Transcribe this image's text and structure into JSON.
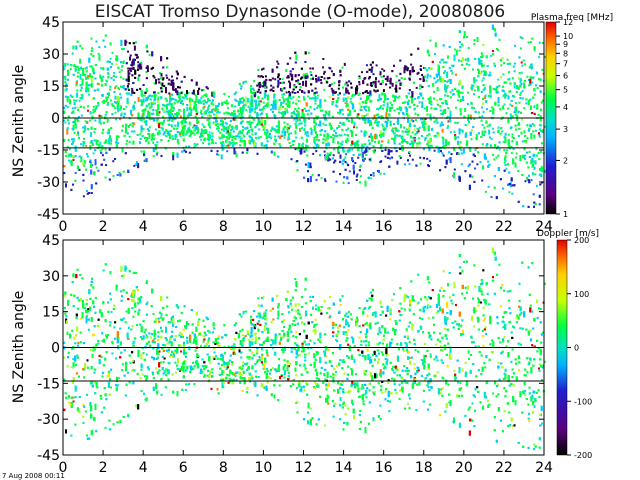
{
  "title": "EISCAT Tromso Dynasonde (O-mode),  20080806",
  "footer": "7 Aug 2008 00:11",
  "chart_data": [
    {
      "type": "scatter",
      "name_note": "top panel",
      "ylabel": "NS Zenith angle",
      "xlim": [
        0,
        24
      ],
      "ylim": [
        -45,
        45
      ],
      "xticks": [
        "0",
        "2",
        "4",
        "6",
        "8",
        "10",
        "12",
        "14",
        "16",
        "18",
        "20",
        "22",
        "24"
      ],
      "yticks": [
        "45",
        "30",
        "15",
        "0",
        "-15",
        "-30",
        "-45"
      ],
      "reference_lines": [
        0,
        -14
      ],
      "colorbar": {
        "title": "Plasma freq [MHz]",
        "scale": "log",
        "range": [
          1,
          12
        ],
        "ticks": [
          "12",
          "10",
          "9",
          "8",
          "7",
          "6",
          "5",
          "4",
          "3",
          "2",
          "1"
        ]
      },
      "envelope": {
        "hours": [
          0,
          1,
          2,
          3,
          4,
          5,
          6,
          7,
          8,
          9,
          10,
          11,
          12,
          13,
          14,
          15,
          16,
          17,
          18,
          19,
          20,
          21,
          22,
          23,
          24
        ],
        "upper_zenith": [
          40,
          38,
          40,
          42,
          36,
          30,
          20,
          16,
          12,
          18,
          26,
          30,
          32,
          30,
          28,
          26,
          28,
          32,
          36,
          40,
          42,
          44,
          44,
          40,
          38
        ],
        "lower_zenith": [
          -40,
          -38,
          -30,
          -26,
          -20,
          -18,
          -16,
          -16,
          -18,
          -18,
          -16,
          -20,
          -28,
          -30,
          -32,
          -30,
          -26,
          -24,
          -24,
          -26,
          -30,
          -36,
          -40,
          -44,
          -42
        ]
      }
    },
    {
      "type": "scatter",
      "name_note": "bottom panel",
      "ylabel": "NS Zenith angle",
      "xlim": [
        0,
        24
      ],
      "ylim": [
        -45,
        45
      ],
      "xticks": [
        "0",
        "2",
        "4",
        "6",
        "8",
        "10",
        "12",
        "14",
        "16",
        "18",
        "20",
        "22",
        "24"
      ],
      "yticks": [
        "45",
        "30",
        "15",
        "0",
        "-15",
        "-30",
        "-45"
      ],
      "reference_lines": [
        0,
        -14
      ],
      "colorbar": {
        "title": "Doppler [m/s]",
        "scale": "linear",
        "range": [
          -200,
          200
        ],
        "ticks": [
          "200",
          "100",
          "0",
          "-100",
          "-200"
        ]
      },
      "envelope": {
        "hours": [
          0,
          1,
          2,
          3,
          4,
          5,
          6,
          7,
          8,
          9,
          10,
          11,
          12,
          13,
          14,
          15,
          16,
          17,
          18,
          19,
          20,
          21,
          22,
          23,
          24
        ],
        "upper_zenith": [
          38,
          34,
          36,
          40,
          30,
          22,
          18,
          14,
          10,
          16,
          24,
          28,
          30,
          28,
          26,
          24,
          26,
          30,
          34,
          38,
          40,
          42,
          42,
          38,
          36
        ],
        "lower_zenith": [
          -44,
          -40,
          -36,
          -30,
          -22,
          -20,
          -18,
          -18,
          -20,
          -20,
          -20,
          -24,
          -30,
          -34,
          -36,
          -34,
          -30,
          -28,
          -28,
          -30,
          -34,
          -38,
          -42,
          -44,
          -44
        ]
      }
    }
  ]
}
